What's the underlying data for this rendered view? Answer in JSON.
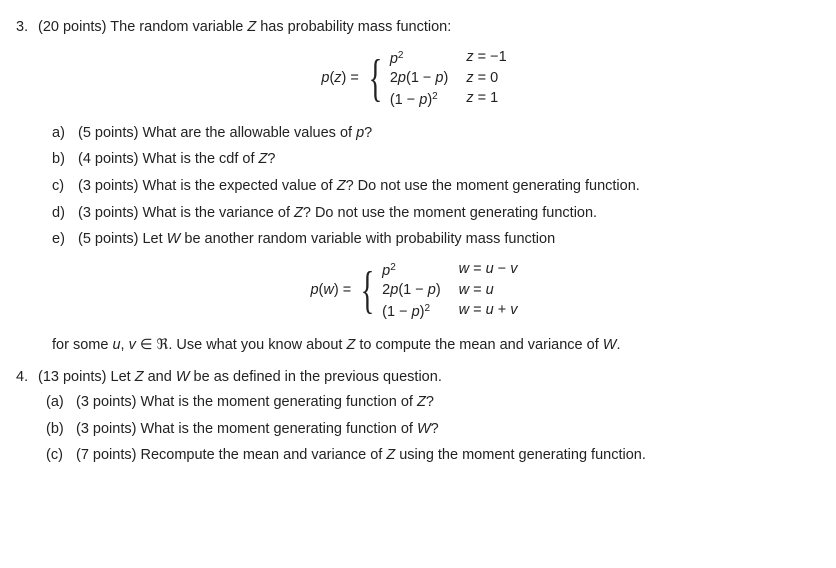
{
  "q3": {
    "number": "3.",
    "points": "(20 points)",
    "stem": "The random variable",
    "var": "Z",
    "stem2": "has probability mass function:",
    "pmf_lhs_a": "p",
    "pmf_lhs_b": "(",
    "pmf_lhs_c": "z",
    "pmf_lhs_d": ") =",
    "pmf": {
      "r1c1a": "p",
      "r1c1b": "2",
      "r1c2a": "z",
      "r1c2b": " = −1",
      "r2c1a": "2",
      "r2c1b": "p",
      "r2c1c": "(1 − ",
      "r2c1d": "p",
      "r2c1e": ")",
      "r2c2a": "z",
      "r2c2b": " = 0",
      "r3c1a": "(1 − ",
      "r3c1b": "p",
      "r3c1c": ")",
      "r3c1d": "2",
      "r3c2a": "z",
      "r3c2b": " = 1"
    },
    "a": {
      "lbl": "a)",
      "pts": "(5 points)",
      "t1": "What are the allowable values of ",
      "v": "p",
      "t2": "?"
    },
    "b": {
      "lbl": "b)",
      "pts": "(4 points)",
      "t1": "What is the cdf of ",
      "v": "Z",
      "t2": "?"
    },
    "c": {
      "lbl": "c)",
      "pts": "(3 points)",
      "t1": "What is the expected value of ",
      "v": "Z",
      "t2": "? Do not use the moment generating func­tion."
    },
    "d": {
      "lbl": "d)",
      "pts": "(3 points)",
      "t1": "What is the variance of ",
      "v": "Z",
      "t2": "? Do not use the moment generating function."
    },
    "e": {
      "lbl": "e)",
      "pts": "(5 points)",
      "t1": "Let ",
      "v": "W",
      "t2": " be another random variable with probability mass function"
    },
    "pmf2_lhs_a": "p",
    "pmf2_lhs_b": "(",
    "pmf2_lhs_c": "w",
    "pmf2_lhs_d": ") =",
    "pmf2": {
      "r1c1a": "p",
      "r1c1b": "2",
      "r1c2a": "w",
      "r1c2b": " = ",
      "r1c2c": "u",
      "r1c2d": " − ",
      "r1c2e": "v",
      "r2c1a": "2",
      "r2c1b": "p",
      "r2c1c": "(1 − ",
      "r2c1d": "p",
      "r2c1e": ")",
      "r2c2a": "w",
      "r2c2b": " = ",
      "r2c2c": "u",
      "r3c1a": "(1 − ",
      "r3c1b": "p",
      "r3c1c": ")",
      "r3c1d": "2",
      "r3c2a": "w",
      "r3c2b": " = ",
      "r3c2c": "u",
      "r3c2d": " + ",
      "r3c2e": "v"
    },
    "note1": "for some ",
    "note_uv": "u",
    "note_comma": ", ",
    "note_v": "v",
    "note_in": " ∈ ℜ. Use what you know about ",
    "note_Z": "Z",
    "note2": " to compute the mean and variance of ",
    "note_W": "W",
    "note3": "."
  },
  "q4": {
    "number": "4.",
    "points": "(13 points)",
    "stem1": "Let ",
    "Z": "Z",
    "and": " and ",
    "W": "W",
    "stem2": " be as defined in the previous question.",
    "a": {
      "lbl": "(a)",
      "pts": "(3 points)",
      "t1": "What is the moment generating function of ",
      "v": "Z",
      "t2": "?"
    },
    "b": {
      "lbl": "(b)",
      "pts": "(3 points)",
      "t1": "What is the moment generating function of ",
      "v": "W",
      "t2": "?"
    },
    "c": {
      "lbl": "(c)",
      "pts": "(7 points)",
      "t1": "Recompute the mean and variance of ",
      "v": "Z",
      "t2": " using the moment generating function."
    }
  }
}
